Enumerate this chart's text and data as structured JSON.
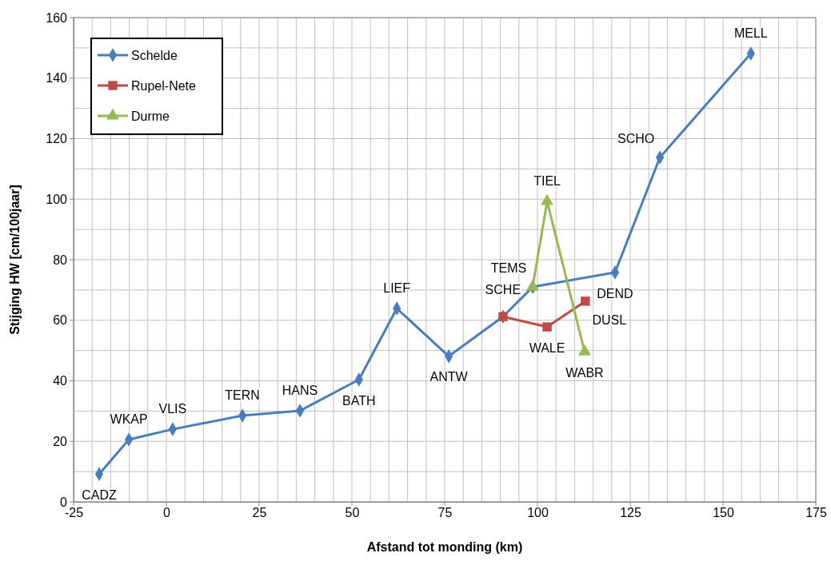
{
  "chart_data": {
    "type": "line",
    "xlabel": "Afstand tot monding (km)",
    "ylabel": "Stijging HW [cm/100jaar]",
    "xlim": [
      -25,
      175
    ],
    "xticks": [
      -25,
      {
        "value": -20,
        "label": null
      },
      {
        "value": -15,
        "label": null
      },
      {
        "value": -10,
        "label": null
      },
      {
        "value": -5,
        "label": null
      },
      0,
      {
        "value": 5,
        "label": null
      },
      {
        "value": 10,
        "label": null
      },
      {
        "value": 15,
        "label": null
      },
      {
        "value": 20,
        "label": null
      },
      25,
      {
        "value": 30,
        "label": null
      },
      {
        "value": 35,
        "label": null
      },
      {
        "value": 40,
        "label": null
      },
      {
        "value": 45,
        "label": null
      },
      50,
      {
        "value": 55,
        "label": null
      },
      {
        "value": 60,
        "label": null
      },
      {
        "value": 65,
        "label": null
      },
      {
        "value": 70,
        "label": null
      },
      75,
      {
        "value": 80,
        "label": null
      },
      {
        "value": 85,
        "label": null
      },
      {
        "value": 90,
        "label": null
      },
      {
        "value": 95,
        "label": null
      },
      100,
      {
        "value": 105,
        "label": null
      },
      {
        "value": 110,
        "label": null
      },
      {
        "value": 115,
        "label": null
      },
      {
        "value": 120,
        "label": null
      },
      125,
      {
        "value": 130,
        "label": null
      },
      {
        "value": 135,
        "label": null
      },
      {
        "value": 140,
        "label": null
      },
      {
        "value": 145,
        "label": null
      },
      150,
      {
        "value": 155,
        "label": null
      },
      {
        "value": 160,
        "label": null
      },
      {
        "value": 165,
        "label": null
      },
      {
        "value": 170,
        "label": null
      },
      175
    ],
    "ylim": [
      0,
      160
    ],
    "yticks": [
      0,
      {
        "value": 10,
        "label": null
      },
      20,
      {
        "value": 30,
        "label": null
      },
      40,
      {
        "value": 50,
        "label": null
      },
      60,
      {
        "value": 70,
        "label": null
      },
      80,
      {
        "value": 90,
        "label": null
      },
      100,
      {
        "value": 110,
        "label": null
      },
      120,
      {
        "value": 130,
        "label": null
      },
      140,
      {
        "value": 150,
        "label": null
      },
      160
    ],
    "grid": true,
    "legend": "top left",
    "line_style": "solid",
    "series": [
      {
        "name": "Schelde",
        "color": "#4a7ebb",
        "marker": "diamond",
        "x": [
          -18.1,
          -10.1,
          1.7,
          20.5,
          36,
          51.9,
          62.1,
          76.1,
          90.7,
          98.7,
          120.9,
          133,
          157.5
        ],
        "values": [
          9.2,
          20.6,
          24,
          28.5,
          30.1,
          40.4,
          63.9,
          48.1,
          61.2,
          71,
          75.8,
          113.8,
          148.1
        ]
      },
      {
        "name": "Rupel-Nete",
        "color": "#be4b48",
        "marker": "square",
        "x": [
          90.7,
          102.6,
          112.9
        ],
        "values": [
          61.2,
          57.8,
          66.3
        ]
      },
      {
        "name": "Durme",
        "color": "#98b954",
        "marker": "triangle",
        "x": [
          98.7,
          102.6,
          112.7
        ],
        "values": [
          71,
          99.3,
          49.6
        ]
      }
    ],
    "annotations": [
      {
        "text": "CADZ",
        "x": -18.1,
        "y": 9.2
      },
      {
        "text": "WKAP",
        "x": -10.1,
        "y": 20.6
      },
      {
        "text": "VLIS",
        "x": 1.7,
        "y": 24
      },
      {
        "text": "TERN",
        "x": 20.5,
        "y": 28.5
      },
      {
        "text": "HANS",
        "x": 36,
        "y": 30.1
      },
      {
        "text": "BATH",
        "x": 51.9,
        "y": 40.4
      },
      {
        "text": "LIEF",
        "x": 62.1,
        "y": 63.9
      },
      {
        "text": "ANTW",
        "x": 76.1,
        "y": 48.1
      },
      {
        "text": "SCHE",
        "x": 90.7,
        "y": 61.2
      },
      {
        "text": "TEMS",
        "x": 98.7,
        "y": 71
      },
      {
        "text": "TIEL",
        "x": 102.6,
        "y": 99.3
      },
      {
        "text": "DEND",
        "x": 120.9,
        "y": 75.8
      },
      {
        "text": "SCHO",
        "x": 133,
        "y": 113.8
      },
      {
        "text": "MELL",
        "x": 157.5,
        "y": 148.1
      },
      {
        "text": "DUSL",
        "x": 112.9,
        "y": 66.3
      },
      {
        "text": "WALE",
        "x": 102.6,
        "y": 57.8
      },
      {
        "text": "WABR",
        "x": 112.7,
        "y": 49.6
      }
    ]
  }
}
